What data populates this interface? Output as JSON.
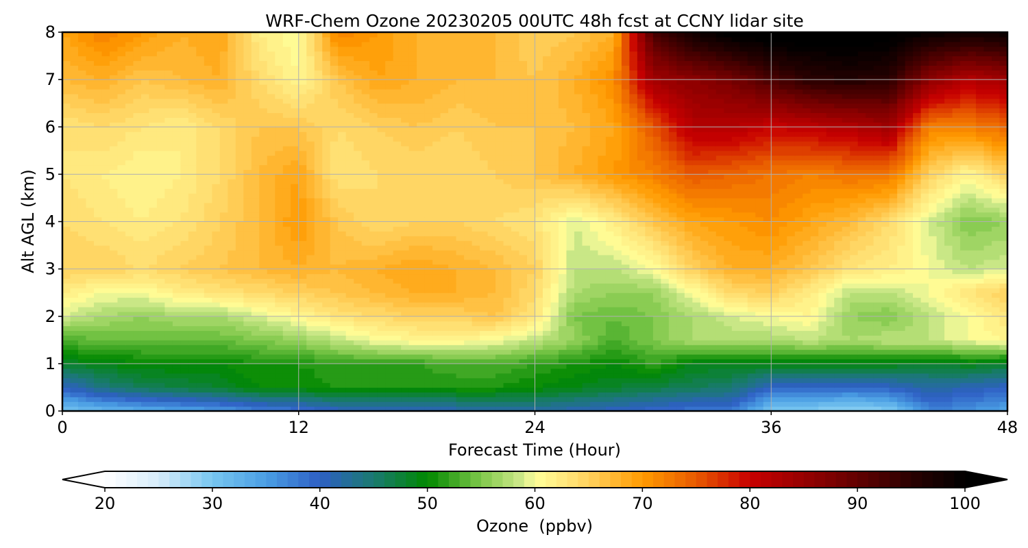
{
  "chart_data": {
    "type": "heatmap",
    "title": "WRF-Chem Ozone  20230205 00UTC 48h fcst at CCNY lidar site",
    "xlabel": "Forecast Time (Hour)",
    "ylabel": "Alt AGL (km)",
    "xlim": [
      0,
      48
    ],
    "ylim": [
      0,
      8
    ],
    "xticks": [
      "0",
      "12",
      "24",
      "36",
      "48"
    ],
    "yticks": [
      "0",
      "1",
      "2",
      "3",
      "4",
      "5",
      "6",
      "7",
      "8"
    ],
    "grid": true,
    "x": [
      0,
      2,
      4,
      6,
      8,
      10,
      12,
      14,
      16,
      18,
      20,
      22,
      24,
      26,
      28,
      30,
      32,
      34,
      36,
      38,
      40,
      42,
      44,
      46,
      48
    ],
    "y": [
      0,
      0.5,
      1,
      1.5,
      2,
      2.5,
      3,
      4,
      5,
      6,
      7,
      8
    ],
    "z_units": "ppbv",
    "z": [
      [
        30,
        32,
        33,
        34,
        35,
        37,
        38,
        40,
        40,
        40,
        41,
        41,
        42,
        41,
        40,
        39,
        38,
        38,
        30,
        29,
        28,
        29,
        37,
        36,
        34
      ],
      [
        40,
        44,
        46,
        47,
        48,
        50,
        50,
        51,
        51,
        51,
        51,
        51,
        50,
        49,
        48,
        47,
        46,
        45,
        40,
        40,
        39,
        40,
        42,
        41,
        40
      ],
      [
        48,
        49,
        50,
        50,
        50,
        51,
        51,
        52,
        52,
        52,
        53,
        53,
        52,
        51,
        50,
        52,
        49,
        49,
        49,
        49,
        49,
        49,
        48,
        49,
        48
      ],
      [
        53,
        54,
        54,
        54,
        54,
        55,
        56,
        58,
        60,
        61,
        61,
        60,
        58,
        56,
        53,
        55,
        57,
        57,
        57,
        58,
        57,
        58,
        58,
        60,
        61
      ],
      [
        59,
        57,
        56,
        57,
        57,
        59,
        61,
        63,
        64,
        65,
        65,
        66,
        63,
        55,
        54,
        55,
        57,
        59,
        60,
        61,
        56,
        55,
        58,
        60,
        63
      ],
      [
        62,
        60,
        60,
        62,
        63,
        64,
        65,
        66,
        67,
        68,
        68,
        67,
        64,
        57,
        56,
        56,
        60,
        64,
        65,
        62,
        58,
        58,
        60,
        63,
        65
      ],
      [
        65,
        65,
        64,
        65,
        66,
        67,
        68,
        67,
        68,
        69,
        68,
        67,
        65,
        58,
        58,
        60,
        65,
        68,
        68,
        66,
        63,
        62,
        60,
        58,
        59
      ],
      [
        64,
        63,
        62,
        63,
        65,
        67,
        70,
        66,
        64,
        65,
        65,
        64,
        63,
        59,
        62,
        66,
        69,
        70,
        71,
        69,
        67,
        64,
        59,
        55,
        56
      ],
      [
        63,
        62,
        61,
        62,
        64,
        67,
        69,
        63,
        64,
        64,
        64,
        65,
        66,
        68,
        70,
        72,
        75,
        74,
        73,
        72,
        73,
        73,
        65,
        61,
        65
      ],
      [
        63,
        64,
        63,
        62,
        64,
        66,
        66,
        64,
        65,
        66,
        65,
        66,
        66,
        67,
        69,
        75,
        82,
        82,
        80,
        81,
        82,
        84,
        72,
        72,
        74
      ],
      [
        67,
        68,
        66,
        67,
        68,
        64,
        61,
        66,
        69,
        68,
        67,
        67,
        66,
        68,
        71,
        84,
        86,
        88,
        92,
        95,
        96,
        95,
        86,
        82,
        84
      ],
      [
        69,
        72,
        70,
        68,
        69,
        62,
        60,
        72,
        70,
        68,
        67,
        67,
        65,
        66,
        68,
        92,
        98,
        101,
        102,
        102,
        102,
        101,
        99,
        98,
        99
      ]
    ],
    "colorbar": {
      "label": "Ozone  (ppbv)",
      "min": 20,
      "max": 100,
      "ticks": [
        "20",
        "30",
        "40",
        "50",
        "60",
        "70",
        "80",
        "90",
        "100"
      ],
      "extend": "both",
      "levels": 80,
      "color_stops": [
        [
          20,
          "#ffffff"
        ],
        [
          25,
          "#d6ecfa"
        ],
        [
          30,
          "#78c6f0"
        ],
        [
          35,
          "#4a9ee4"
        ],
        [
          40,
          "#2e5fc4"
        ],
        [
          45,
          "#1a7a70"
        ],
        [
          50,
          "#008800"
        ],
        [
          55,
          "#7fc84a"
        ],
        [
          59,
          "#d4eb8e"
        ],
        [
          60,
          "#ffff99"
        ],
        [
          63,
          "#ffe57a"
        ],
        [
          66,
          "#ffc74d"
        ],
        [
          70,
          "#ff9a00"
        ],
        [
          75,
          "#e85a00"
        ],
        [
          80,
          "#c80000"
        ],
        [
          88,
          "#780000"
        ],
        [
          95,
          "#2a0000"
        ],
        [
          100,
          "#000000"
        ]
      ]
    }
  }
}
